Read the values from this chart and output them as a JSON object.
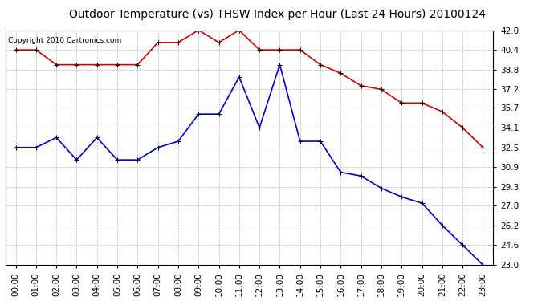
{
  "title": "Outdoor Temperature (vs) THSW Index per Hour (Last 24 Hours) 20100124",
  "copyright": "Copyright 2010 Cartronics.com",
  "hours": [
    "00:00",
    "01:00",
    "02:00",
    "03:00",
    "04:00",
    "05:00",
    "06:00",
    "07:00",
    "08:00",
    "09:00",
    "10:00",
    "11:00",
    "12:00",
    "13:00",
    "14:00",
    "15:00",
    "16:00",
    "17:00",
    "18:00",
    "19:00",
    "20:00",
    "21:00",
    "22:00",
    "23:00"
  ],
  "red_temp": [
    40.4,
    40.4,
    39.2,
    39.2,
    39.2,
    39.2,
    39.2,
    41.0,
    41.0,
    42.0,
    41.0,
    42.0,
    40.4,
    40.4,
    40.4,
    39.2,
    38.5,
    37.5,
    37.2,
    36.1,
    36.1,
    35.4,
    34.1,
    32.5
  ],
  "blue_thsw": [
    32.5,
    32.5,
    33.3,
    31.5,
    33.3,
    31.5,
    31.5,
    32.5,
    33.0,
    35.2,
    35.2,
    38.2,
    34.1,
    39.2,
    33.0,
    33.0,
    30.5,
    30.2,
    29.2,
    28.5,
    28.0,
    26.2,
    24.6,
    23.0
  ],
  "red_color": "#cc0000",
  "blue_color": "#0000cc",
  "marker_color": "#000000",
  "bg_color": "#ffffff",
  "grid_color": "#bbbbbb",
  "ymin": 23.0,
  "ymax": 42.0,
  "yticks": [
    42.0,
    40.4,
    38.8,
    37.2,
    35.7,
    34.1,
    32.5,
    30.9,
    29.3,
    27.8,
    26.2,
    24.6,
    23.0
  ],
  "title_fontsize": 10,
  "copyright_fontsize": 6.5,
  "tick_fontsize": 7.5
}
